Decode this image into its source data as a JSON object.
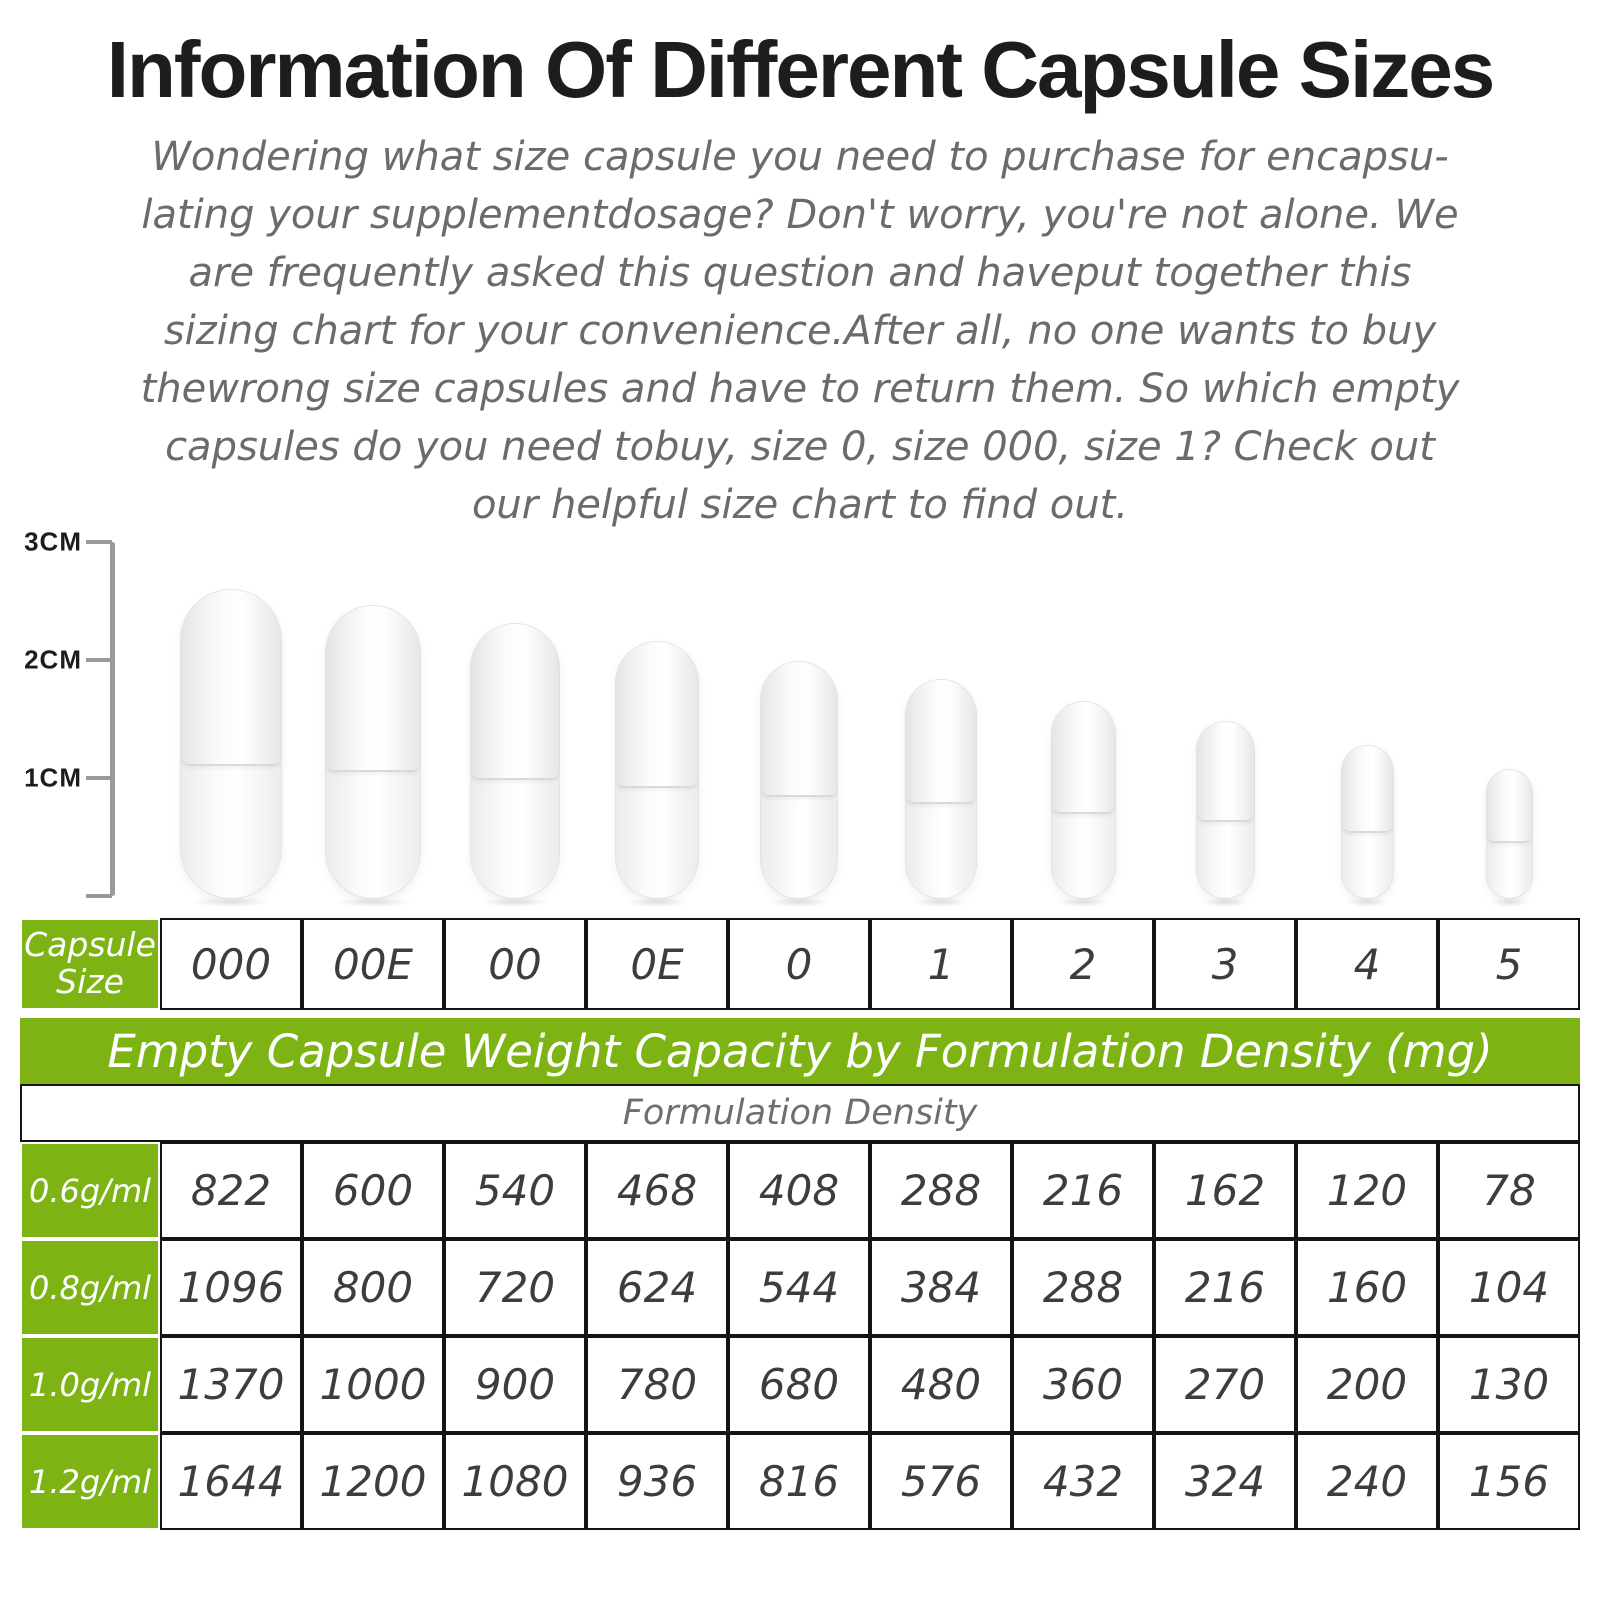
{
  "colors": {
    "accent_green": "#7db414",
    "title_color": "#1d1d1d",
    "body_text_gray": "#6b6b6b",
    "table_line_black": "#141414"
  },
  "header": {
    "title": "Information Of Different Capsule Sizes",
    "intro_lines": [
      "Wondering what size capsule you need to purchase for encapsu-",
      "lating your supplementdosage? Don't worry, you're not alone. We",
      "are frequently asked this question and haveput together this",
      "sizing chart for your convenience.After all, no one wants to buy",
      "thewrong size capsules and have to return them. So which empty",
      "capsules do you need tobuy, size 0, size 000, size 1? Check out",
      "our helpful size chart to find out."
    ]
  },
  "ruler": {
    "labels": [
      "3CM",
      "2CM",
      "1CM"
    ]
  },
  "capsule_sizes": [
    "000",
    "00E",
    "00",
    "0E",
    "0",
    "1",
    "2",
    "3",
    "4",
    "5"
  ],
  "table": {
    "corner_label": "Capsule Size",
    "banner": "Empty Capsule Weight Capacity by Formulation Density (mg)",
    "subheader": "Formulation Density",
    "density_rows": [
      {
        "label": "0.6g/ml",
        "values": [
          "822",
          "600",
          "540",
          "468",
          "408",
          "288",
          "216",
          "162",
          "120",
          "78"
        ]
      },
      {
        "label": "0.8g/ml",
        "values": [
          "1096",
          "800",
          "720",
          "624",
          "544",
          "384",
          "288",
          "216",
          "160",
          "104"
        ]
      },
      {
        "label": "1.0g/ml",
        "values": [
          "1370",
          "1000",
          "900",
          "780",
          "680",
          "480",
          "360",
          "270",
          "200",
          "130"
        ]
      },
      {
        "label": "1.2g/ml",
        "values": [
          "1644",
          "1200",
          "1080",
          "936",
          "816",
          "576",
          "432",
          "324",
          "240",
          "156"
        ]
      }
    ]
  },
  "chart_data": {
    "type": "table",
    "title": "Empty Capsule Weight Capacity by Formulation Density (mg)",
    "columns_label": "Capsule Size",
    "columns": [
      "000",
      "00E",
      "00",
      "0E",
      "0",
      "1",
      "2",
      "3",
      "4",
      "5"
    ],
    "rows_label": "Formulation Density",
    "rows": [
      {
        "density": "0.6g/ml",
        "capacity_mg": [
          822,
          600,
          540,
          468,
          408,
          288,
          216,
          162,
          120,
          78
        ]
      },
      {
        "density": "0.8g/ml",
        "capacity_mg": [
          1096,
          800,
          720,
          624,
          544,
          384,
          288,
          216,
          160,
          104
        ]
      },
      {
        "density": "1.0g/ml",
        "capacity_mg": [
          1370,
          1000,
          900,
          780,
          680,
          480,
          360,
          270,
          200,
          130
        ]
      },
      {
        "density": "1.2g/ml",
        "capacity_mg": [
          1644,
          1200,
          1080,
          936,
          816,
          576,
          432,
          324,
          240,
          156
        ]
      }
    ],
    "ruler_scale_cm": [
      3,
      2,
      1
    ]
  }
}
